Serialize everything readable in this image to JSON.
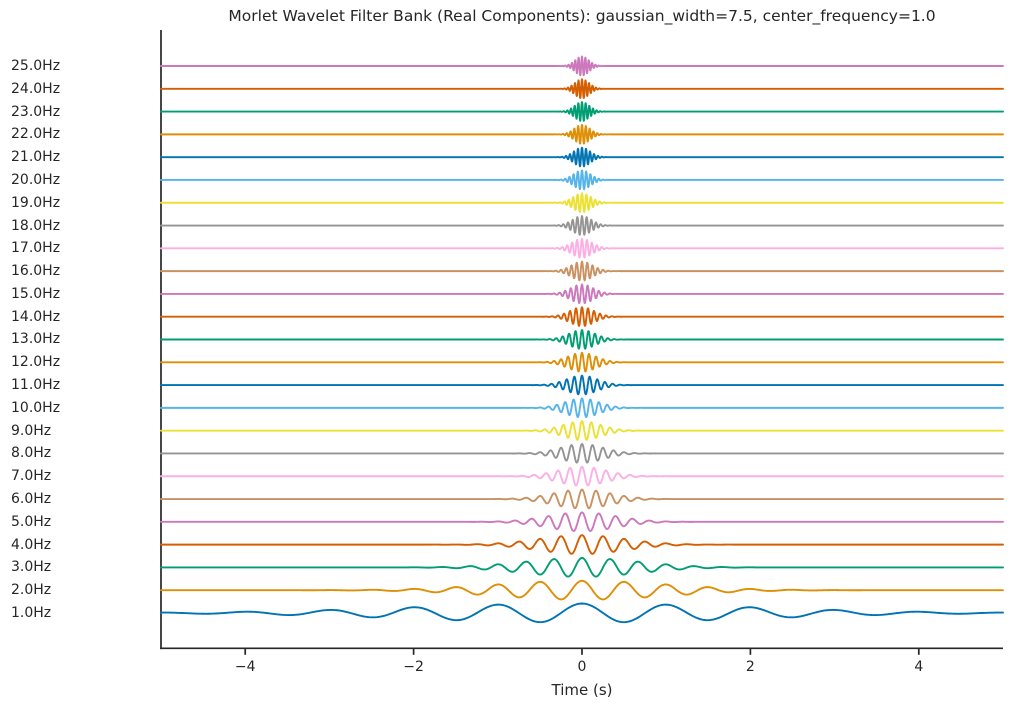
{
  "figure": {
    "background": "#ffffff",
    "text_color": "#262626",
    "axis_color": "#262626"
  },
  "chart_data": {
    "type": "line",
    "title": "Morlet Wavelet Filter Bank (Real Components): gaussian_width=7.5, center_frequency=1.0",
    "xlabel": "Time (s)",
    "ylabel": "",
    "grid": false,
    "legend": "none",
    "xlim": [
      -5,
      5
    ],
    "ylim_rows": [
      -1.55,
      25.6
    ],
    "x_ticks": [
      {
        "value": -4,
        "label": "−4"
      },
      {
        "value": -2,
        "label": "−2"
      },
      {
        "value": 0,
        "label": "0"
      },
      {
        "value": 2,
        "label": "2"
      },
      {
        "value": 4,
        "label": "4"
      }
    ],
    "params": {
      "wavelet": "morlet",
      "component": "real",
      "gaussian_width": 7.5,
      "center_frequency": 1.0
    },
    "waveform": {
      "formula": "offset + amplitude * cos(2*pi*f*t) * exp(-t^2 / (2*sigma^2))",
      "sigma_seconds": "2.0 / f (estimated from plot)",
      "sigma_coeff": 2.0,
      "amplitude_rows": 0.42,
      "offset_per_row": 1.0
    },
    "series": [
      {
        "frequency_hz": 1.0,
        "label": "1.0Hz",
        "color": "#0173b2"
      },
      {
        "frequency_hz": 2.0,
        "label": "2.0Hz",
        "color": "#de8f05"
      },
      {
        "frequency_hz": 3.0,
        "label": "3.0Hz",
        "color": "#029e73"
      },
      {
        "frequency_hz": 4.0,
        "label": "4.0Hz",
        "color": "#d55e00"
      },
      {
        "frequency_hz": 5.0,
        "label": "5.0Hz",
        "color": "#cc78bc"
      },
      {
        "frequency_hz": 6.0,
        "label": "6.0Hz",
        "color": "#ca9161"
      },
      {
        "frequency_hz": 7.0,
        "label": "7.0Hz",
        "color": "#fbafe4"
      },
      {
        "frequency_hz": 8.0,
        "label": "8.0Hz",
        "color": "#949494"
      },
      {
        "frequency_hz": 9.0,
        "label": "9.0Hz",
        "color": "#ece133"
      },
      {
        "frequency_hz": 10.0,
        "label": "10.0Hz",
        "color": "#56b4e9"
      },
      {
        "frequency_hz": 11.0,
        "label": "11.0Hz",
        "color": "#0173b2"
      },
      {
        "frequency_hz": 12.0,
        "label": "12.0Hz",
        "color": "#de8f05"
      },
      {
        "frequency_hz": 13.0,
        "label": "13.0Hz",
        "color": "#029e73"
      },
      {
        "frequency_hz": 14.0,
        "label": "14.0Hz",
        "color": "#d55e00"
      },
      {
        "frequency_hz": 15.0,
        "label": "15.0Hz",
        "color": "#cc78bc"
      },
      {
        "frequency_hz": 16.0,
        "label": "16.0Hz",
        "color": "#ca9161"
      },
      {
        "frequency_hz": 17.0,
        "label": "17.0Hz",
        "color": "#fbafe4"
      },
      {
        "frequency_hz": 18.0,
        "label": "18.0Hz",
        "color": "#949494"
      },
      {
        "frequency_hz": 19.0,
        "label": "19.0Hz",
        "color": "#ece133"
      },
      {
        "frequency_hz": 20.0,
        "label": "20.0Hz",
        "color": "#56b4e9"
      },
      {
        "frequency_hz": 21.0,
        "label": "21.0Hz",
        "color": "#0173b2"
      },
      {
        "frequency_hz": 22.0,
        "label": "22.0Hz",
        "color": "#de8f05"
      },
      {
        "frequency_hz": 23.0,
        "label": "23.0Hz",
        "color": "#029e73"
      },
      {
        "frequency_hz": 24.0,
        "label": "24.0Hz",
        "color": "#d55e00"
      },
      {
        "frequency_hz": 25.0,
        "label": "25.0Hz",
        "color": "#cc78bc"
      }
    ]
  }
}
